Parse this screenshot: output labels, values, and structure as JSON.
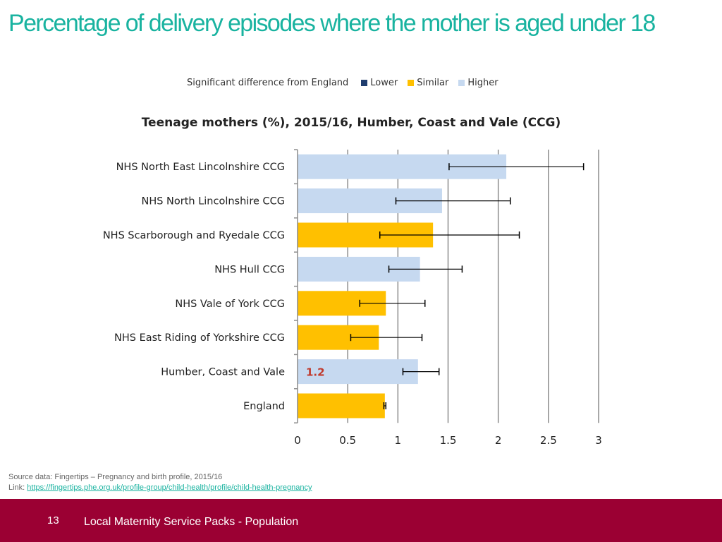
{
  "slide": {
    "title": "Percentage of delivery episodes where the mother is aged under 18",
    "source_label": "Source data: Fingertips – Pregnancy and birth profile, 2015/16",
    "link_label": "Link: ",
    "link_url": "https://fingertips.phe.org.uk/profile-group/child-health/profile/child-health-pregnancy",
    "page_number": "13",
    "footer_text": "Local Maternity Service Packs - Population"
  },
  "colors": {
    "title": "#19b3a0",
    "lower": "#1f3d6e",
    "similar": "#ffc000",
    "higher": "#c6d9f0",
    "footer": "#9b0033",
    "value_label": "#c0392b"
  },
  "legend": {
    "heading": "Significant difference from England",
    "items": [
      {
        "label": "Lower",
        "key": "lower"
      },
      {
        "label": "Similar",
        "key": "similar"
      },
      {
        "label": "Higher",
        "key": "higher"
      }
    ]
  },
  "chart_data": {
    "type": "bar",
    "orientation": "horizontal",
    "title": "Teenage mothers (%), 2015/16, Humber, Coast and Vale (CCG)",
    "categories": [
      "NHS North East Lincolnshire CCG",
      "NHS North Lincolnshire CCG",
      "NHS Scarborough and Ryedale CCG",
      "NHS Hull CCG",
      "NHS Vale of York CCG",
      "NHS East Riding of Yorkshire CCG",
      "Humber, Coast and Vale",
      "England"
    ],
    "values": [
      2.08,
      1.44,
      1.35,
      1.22,
      0.88,
      0.81,
      1.2,
      0.87
    ],
    "ci_lower": [
      1.51,
      0.98,
      0.82,
      0.91,
      0.62,
      0.53,
      1.05,
      0.86
    ],
    "ci_upper": [
      2.85,
      2.12,
      2.21,
      1.64,
      1.27,
      1.24,
      1.41,
      0.88
    ],
    "significance": [
      "higher",
      "higher",
      "similar",
      "higher",
      "similar",
      "similar",
      "higher",
      "similar"
    ],
    "data_labels": [
      "",
      "",
      "",
      "",
      "",
      "",
      "1.2",
      ""
    ],
    "xlim": [
      0,
      3
    ],
    "xticks": [
      "0",
      "0.5",
      "1",
      "1.5",
      "2",
      "2.5",
      "3"
    ],
    "grid": true,
    "legend_position": "top"
  }
}
